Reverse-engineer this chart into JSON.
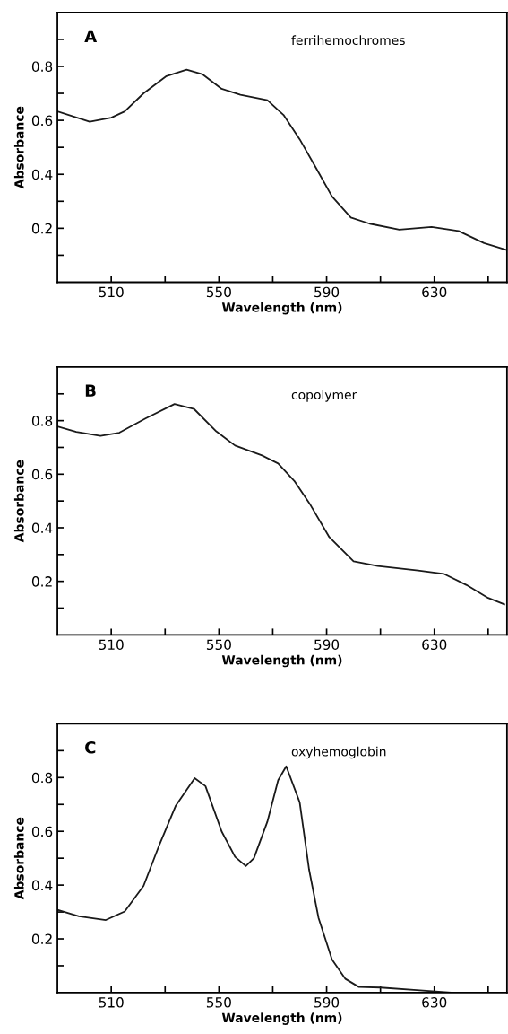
{
  "chart_data": [
    {
      "type": "line",
      "xlabel": "Wavelength (nm)",
      "ylabel": "Absorbance",
      "annotations": [
        "A",
        "ferrihemochromes"
      ],
      "xlim": [
        490,
        657
      ],
      "ylim": [
        0,
        1.0
      ],
      "xticks": [
        510,
        {
          "value": 530,
          "label": null
        },
        550,
        {
          "value": 570,
          "label": null
        },
        590,
        {
          "value": 610,
          "label": null
        },
        630,
        {
          "value": 650,
          "label": null
        }
      ],
      "yticks": [
        {
          "value": 0.1,
          "label": null
        },
        0.2,
        {
          "value": 0.3,
          "label": null
        },
        0.4,
        {
          "value": 0.5,
          "label": null
        },
        0.6,
        {
          "value": 0.7,
          "label": null
        },
        0.8,
        {
          "value": 0.9,
          "label": null
        }
      ],
      "grid": false,
      "series": [
        {
          "color": "#1a1a1a",
          "x": [
            490,
            502,
            510,
            515,
            522,
            530.5,
            538,
            544,
            551,
            558,
            568,
            574,
            580,
            586,
            592,
            599,
            606,
            617,
            629,
            639,
            648.5,
            656.7
          ],
          "values": [
            0.633,
            0.595,
            0.61,
            0.633,
            0.7,
            0.764,
            0.788,
            0.77,
            0.717,
            0.695,
            0.675,
            0.62,
            0.53,
            0.425,
            0.318,
            0.24,
            0.217,
            0.195,
            0.205,
            0.19,
            0.145,
            0.12
          ]
        }
      ]
    },
    {
      "type": "line",
      "xlabel": "Wavelength (nm)",
      "ylabel": "Absorbance",
      "annotations": [
        "B",
        "copolymer"
      ],
      "xlim": [
        490,
        657
      ],
      "ylim": [
        0,
        1.0
      ],
      "xticks": [
        510,
        {
          "value": 530,
          "label": null
        },
        550,
        {
          "value": 570,
          "label": null
        },
        590,
        {
          "value": 610,
          "label": null
        },
        630,
        {
          "value": 650,
          "label": null
        }
      ],
      "yticks": [
        {
          "value": 0.1,
          "label": null
        },
        0.2,
        {
          "value": 0.3,
          "label": null
        },
        0.4,
        {
          "value": 0.5,
          "label": null
        },
        0.6,
        {
          "value": 0.7,
          "label": null
        },
        0.8,
        {
          "value": 0.9,
          "label": null
        }
      ],
      "grid": false,
      "series": [
        {
          "color": "#1a1a1a",
          "x": [
            490,
            497,
            506,
            513,
            522.7,
            533.5,
            540.7,
            549,
            556,
            566,
            572,
            578,
            584,
            591,
            600,
            609,
            624,
            633.5,
            642,
            650,
            656
          ],
          "values": [
            0.778,
            0.758,
            0.743,
            0.755,
            0.808,
            0.862,
            0.844,
            0.76,
            0.707,
            0.67,
            0.64,
            0.575,
            0.485,
            0.365,
            0.275,
            0.257,
            0.24,
            0.228,
            0.186,
            0.138,
            0.114
          ]
        }
      ]
    },
    {
      "type": "line",
      "xlabel": "Wavelength (nm)",
      "ylabel": "Absorbance",
      "annotations": [
        "C",
        "oxyhemoglobin"
      ],
      "xlim": [
        490,
        657
      ],
      "ylim": [
        0,
        1.0
      ],
      "xticks": [
        510,
        {
          "value": 530,
          "label": null
        },
        550,
        {
          "value": 570,
          "label": null
        },
        590,
        {
          "value": 610,
          "label": null
        },
        630,
        {
          "value": 650,
          "label": null
        }
      ],
      "yticks": [
        {
          "value": 0.1,
          "label": null
        },
        0.2,
        {
          "value": 0.3,
          "label": null
        },
        0.4,
        {
          "value": 0.5,
          "label": null
        },
        0.6,
        {
          "value": 0.7,
          "label": null
        },
        0.8,
        {
          "value": 0.9,
          "label": null
        }
      ],
      "grid": false,
      "series": [
        {
          "color": "#1a1a1a",
          "x": [
            490,
            498,
            508,
            515,
            522,
            528,
            534,
            541,
            545,
            551,
            556,
            560,
            563,
            568,
            572,
            575,
            580,
            583.5,
            587,
            592,
            597,
            602,
            610,
            623.5,
            636
          ],
          "values": [
            0.308,
            0.284,
            0.27,
            0.302,
            0.397,
            0.553,
            0.696,
            0.798,
            0.768,
            0.6,
            0.505,
            0.471,
            0.5,
            0.636,
            0.79,
            0.842,
            0.708,
            0.457,
            0.278,
            0.123,
            0.051,
            0.021,
            0.019,
            0.009,
            0.0
          ]
        }
      ]
    }
  ]
}
